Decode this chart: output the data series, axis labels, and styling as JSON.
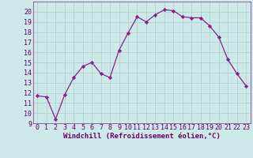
{
  "x": [
    0,
    1,
    2,
    3,
    4,
    5,
    6,
    7,
    8,
    9,
    10,
    11,
    12,
    13,
    14,
    15,
    16,
    17,
    18,
    19,
    20,
    21,
    22,
    23
  ],
  "y": [
    11.7,
    11.6,
    9.4,
    11.8,
    13.5,
    14.6,
    15.0,
    13.9,
    13.5,
    16.2,
    17.9,
    19.5,
    19.0,
    19.7,
    20.2,
    20.1,
    19.5,
    19.4,
    19.4,
    18.6,
    17.5,
    15.3,
    13.9,
    12.7
  ],
  "line_color": "#882288",
  "marker": "D",
  "marker_size": 2.2,
  "line_width": 0.9,
  "bg_color": "#cce8e8",
  "grid_color": "#aacece",
  "xlabel": "Windchill (Refroidissement éolien,°C)",
  "xlabel_fontsize": 6.5,
  "tick_fontsize": 6,
  "ylim": [
    9,
    21
  ],
  "xlim": [
    -0.5,
    23.5
  ],
  "yticks": [
    9,
    10,
    11,
    12,
    13,
    14,
    15,
    16,
    17,
    18,
    19,
    20
  ],
  "xticks": [
    0,
    1,
    2,
    3,
    4,
    5,
    6,
    7,
    8,
    9,
    10,
    11,
    12,
    13,
    14,
    15,
    16,
    17,
    18,
    19,
    20,
    21,
    22,
    23
  ]
}
